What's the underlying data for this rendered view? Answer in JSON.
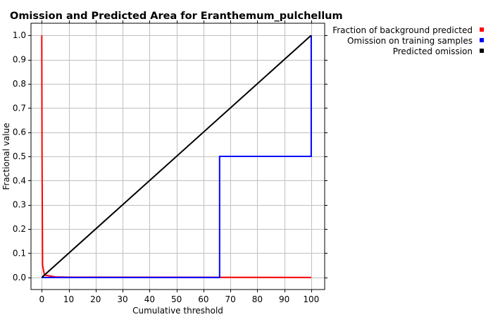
{
  "chart_data": {
    "type": "line",
    "title": "Omission and Predicted Area for Eranthemum_pulchellum",
    "xlabel": "Cumulative threshold",
    "ylabel": "Fractional value",
    "xlim": [
      -4,
      105
    ],
    "ylim": [
      -0.05,
      1.05
    ],
    "x_ticks": [
      0,
      10,
      20,
      30,
      40,
      50,
      60,
      70,
      80,
      90,
      100
    ],
    "y_ticks": [
      0.0,
      0.1,
      0.2,
      0.3,
      0.4,
      0.5,
      0.6,
      0.7,
      0.8,
      0.9,
      1.0
    ],
    "x_tick_labels": [
      "0",
      "10",
      "20",
      "30",
      "40",
      "50",
      "60",
      "70",
      "80",
      "90",
      "100"
    ],
    "y_tick_labels": [
      "0.0",
      "0.1",
      "0.2",
      "0.3",
      "0.4",
      "0.5",
      "0.6",
      "0.7",
      "0.8",
      "0.9",
      "1.0"
    ],
    "grid": true,
    "legend_position": "top-right, outside plot",
    "series": [
      {
        "name": "Fraction of background predicted",
        "color": "#ff0000",
        "points": [
          [
            0,
            1.0
          ],
          [
            0.1,
            0.5
          ],
          [
            0.3,
            0.05
          ],
          [
            1,
            0.01
          ],
          [
            5,
            0.002
          ],
          [
            10,
            0.001
          ],
          [
            50,
            0.0005
          ],
          [
            100,
            0.0
          ]
        ]
      },
      {
        "name": "Omission on training samples",
        "color": "#0000ff",
        "points": [
          [
            0,
            0.0
          ],
          [
            66,
            0.0
          ],
          [
            66,
            0.5
          ],
          [
            100,
            0.5
          ],
          [
            100,
            1.0
          ]
        ]
      },
      {
        "name": "Predicted omission",
        "color": "#000000",
        "points": [
          [
            0,
            0.0
          ],
          [
            100,
            1.0
          ]
        ]
      }
    ]
  }
}
